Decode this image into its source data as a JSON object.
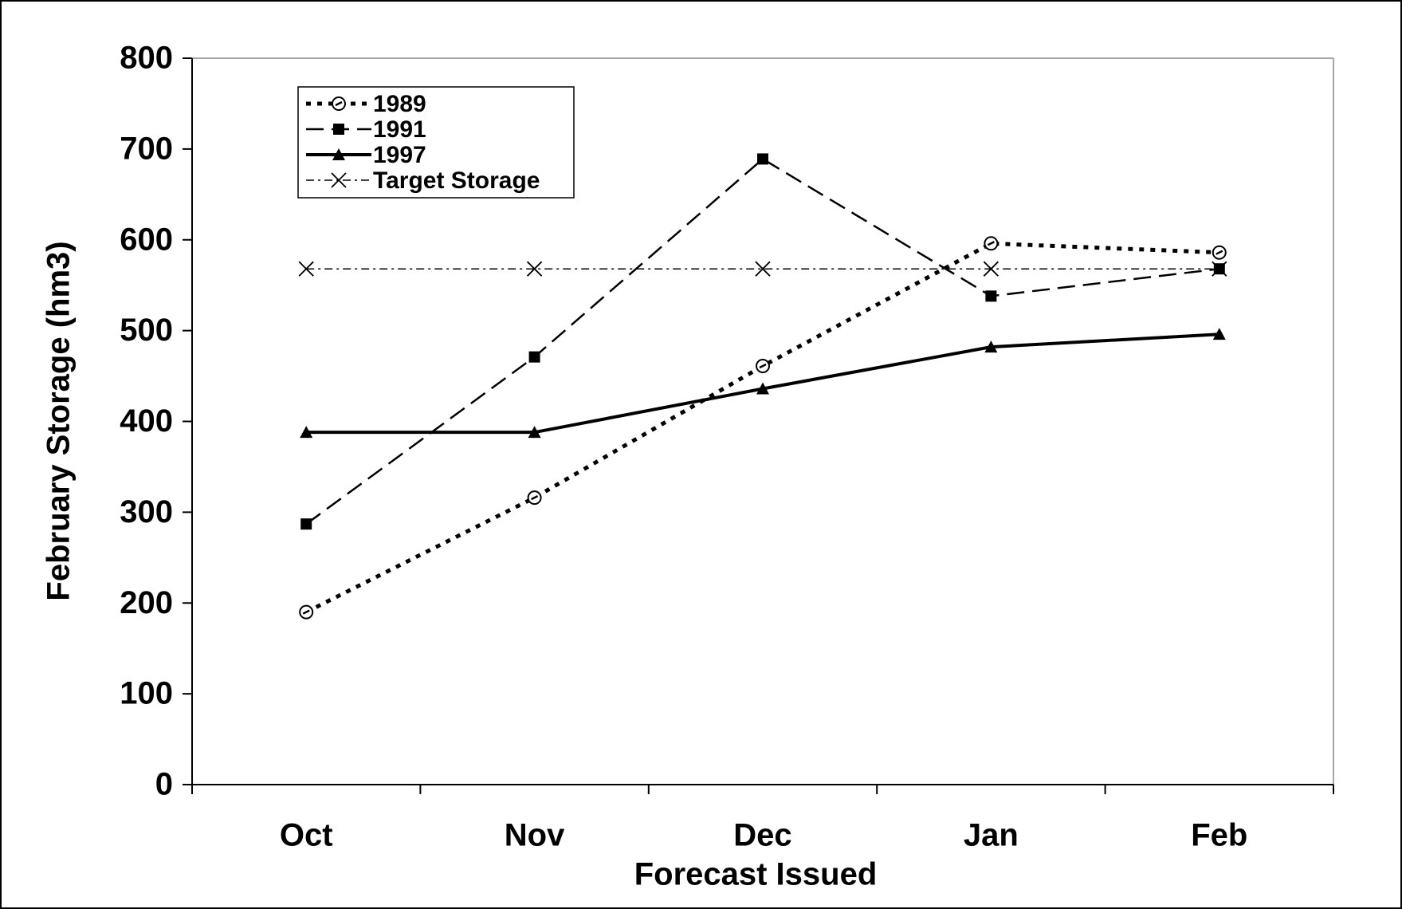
{
  "chart_data": {
    "type": "line",
    "x_label": "Forecast Issued",
    "y_label": "February Storage (hm3)",
    "categories": [
      "Oct",
      "Nov",
      "Dec",
      "Jan",
      "Feb"
    ],
    "series": [
      {
        "name": "1989",
        "color": "#000000",
        "style": "dotted",
        "marker": "circle",
        "values": [
          190,
          316,
          461,
          596,
          586
        ]
      },
      {
        "name": "1991",
        "color": "#000000",
        "style": "dashed",
        "marker": "square",
        "values": [
          287,
          471,
          689,
          538,
          568
        ]
      },
      {
        "name": "1997",
        "color": "#000000",
        "style": "solid",
        "marker": "triangle",
        "values": [
          388,
          388,
          436,
          482,
          496
        ]
      },
      {
        "name": "Target Storage",
        "color": "#000000",
        "style": "dash-dot",
        "marker": "x",
        "values": [
          568,
          568,
          568,
          568,
          568
        ]
      }
    ],
    "ylim": [
      0,
      800
    ],
    "yticks": [
      0,
      100,
      200,
      300,
      400,
      500,
      600,
      700,
      800
    ],
    "grid": false,
    "legend": "top-left"
  }
}
